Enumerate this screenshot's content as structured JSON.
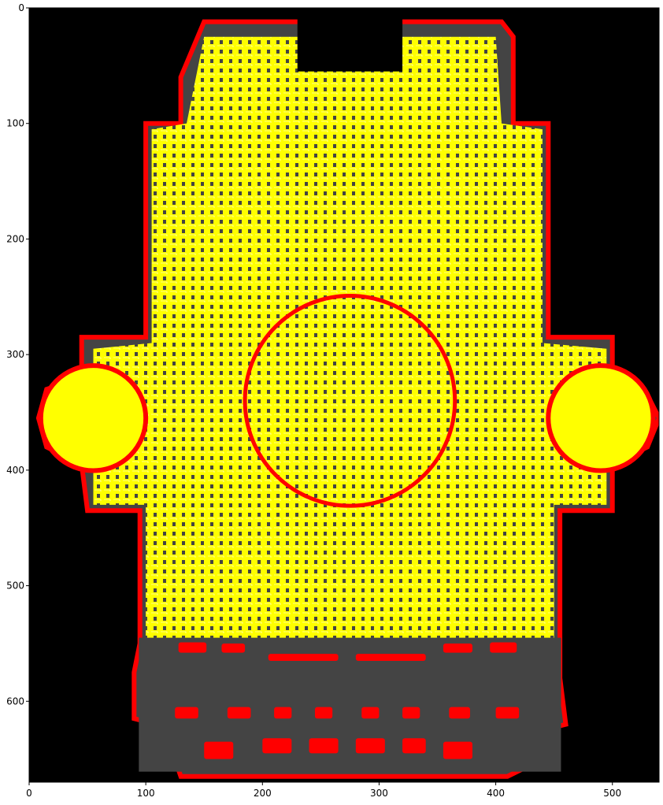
{
  "chart_data": {
    "type": "heatmap",
    "title": "",
    "xlabel": "",
    "ylabel": "",
    "xlim": [
      0,
      540
    ],
    "ylim": [
      670,
      0
    ],
    "y_inverted": true,
    "grid": false,
    "x_ticks": [
      0,
      100,
      200,
      300,
      400,
      500
    ],
    "y_ticks": [
      0,
      100,
      200,
      300,
      400,
      500,
      600
    ],
    "x_tick_labels": [
      "0",
      "100",
      "200",
      "300",
      "400",
      "500"
    ],
    "y_tick_labels": [
      "0",
      "100",
      "200",
      "300",
      "400",
      "500",
      "600"
    ],
    "colors": {
      "background": "#000000",
      "floor": "#444444",
      "boundary": "#ff0000",
      "cells": "#ffff00",
      "paths": "#ffffff"
    },
    "regions": {
      "outline": [
        [
          150,
          12
        ],
        [
          405,
          12
        ],
        [
          415,
          25
        ],
        [
          415,
          60
        ],
        [
          415,
          100
        ],
        [
          445,
          100
        ],
        [
          445,
          285
        ],
        [
          450,
          285
        ],
        [
          500,
          285
        ],
        [
          500,
          325
        ],
        [
          530,
          335
        ],
        [
          540,
          355
        ],
        [
          530,
          380
        ],
        [
          500,
          395
        ],
        [
          500,
          435
        ],
        [
          455,
          435
        ],
        [
          455,
          550
        ],
        [
          455,
          580
        ],
        [
          460,
          620
        ],
        [
          440,
          625
        ],
        [
          440,
          650
        ],
        [
          410,
          665
        ],
        [
          130,
          665
        ],
        [
          125,
          650
        ],
        [
          110,
          650
        ],
        [
          110,
          620
        ],
        [
          90,
          615
        ],
        [
          90,
          575
        ],
        [
          95,
          550
        ],
        [
          95,
          435
        ],
        [
          50,
          435
        ],
        [
          45,
          395
        ],
        [
          15,
          380
        ],
        [
          8,
          355
        ],
        [
          15,
          330
        ],
        [
          45,
          320
        ],
        [
          45,
          285
        ],
        [
          100,
          285
        ],
        [
          100,
          100
        ],
        [
          130,
          100
        ],
        [
          130,
          60
        ],
        [
          150,
          12
        ]
      ],
      "top_notch": [
        [
          230,
          12
        ],
        [
          320,
          12
        ],
        [
          320,
          55
        ],
        [
          230,
          55
        ]
      ],
      "apse_center": [
        275,
        340
      ],
      "apse_radius": 90,
      "left_rotunda_center": [
        55,
        355
      ],
      "left_rotunda_radius": 45,
      "right_rotunda_center": [
        490,
        355
      ],
      "right_rotunda_radius": 45,
      "nave_bounds": [
        [
          90,
          545
        ],
        [
          460,
          665
        ]
      ]
    },
    "red_segments": [
      {
        "x": [
          128,
          152
        ],
        "y": [
          549,
          558
        ]
      },
      {
        "x": [
          165,
          185
        ],
        "y": [
          550,
          558
        ]
      },
      {
        "x": [
          205,
          265
        ],
        "y": [
          559,
          565
        ]
      },
      {
        "x": [
          280,
          340
        ],
        "y": [
          559,
          565
        ]
      },
      {
        "x": [
          355,
          380
        ],
        "y": [
          550,
          558
        ]
      },
      {
        "x": [
          395,
          418
        ],
        "y": [
          549,
          558
        ]
      },
      {
        "x": [
          125,
          145
        ],
        "y": [
          605,
          615
        ]
      },
      {
        "x": [
          170,
          190
        ],
        "y": [
          605,
          615
        ]
      },
      {
        "x": [
          210,
          225
        ],
        "y": [
          605,
          615
        ]
      },
      {
        "x": [
          245,
          260
        ],
        "y": [
          605,
          615
        ]
      },
      {
        "x": [
          285,
          300
        ],
        "y": [
          605,
          615
        ]
      },
      {
        "x": [
          320,
          335
        ],
        "y": [
          605,
          615
        ]
      },
      {
        "x": [
          360,
          378
        ],
        "y": [
          605,
          615
        ]
      },
      {
        "x": [
          400,
          420
        ],
        "y": [
          605,
          615
        ]
      },
      {
        "x": [
          150,
          175
        ],
        "y": [
          635,
          650
        ]
      },
      {
        "x": [
          200,
          225
        ],
        "y": [
          632,
          645
        ]
      },
      {
        "x": [
          240,
          265
        ],
        "y": [
          632,
          645
        ]
      },
      {
        "x": [
          280,
          305
        ],
        "y": [
          632,
          645
        ]
      },
      {
        "x": [
          320,
          340
        ],
        "y": [
          632,
          645
        ]
      },
      {
        "x": [
          355,
          380
        ],
        "y": [
          635,
          650
        ]
      }
    ]
  }
}
